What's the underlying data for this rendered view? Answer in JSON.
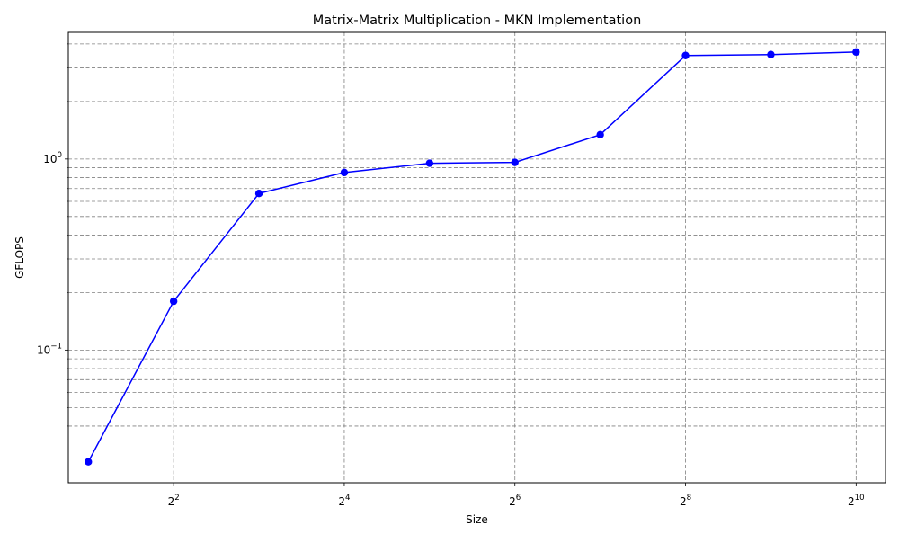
{
  "chart_data": {
    "type": "line",
    "title": "Matrix-Matrix Multiplication - MKN Implementation",
    "xlabel": "Size",
    "ylabel": "GFLOPS",
    "x_scale": "log2",
    "y_scale": "log10",
    "xlim": [
      1.7,
      1300
    ],
    "ylim": [
      0.0202,
      4.6
    ],
    "grid": true,
    "x_ticks": [
      {
        "base": "2",
        "exp": "2",
        "value": 4
      },
      {
        "base": "2",
        "exp": "4",
        "value": 16
      },
      {
        "base": "2",
        "exp": "6",
        "value": 64
      },
      {
        "base": "2",
        "exp": "8",
        "value": 256
      },
      {
        "base": "2",
        "exp": "10",
        "value": 1024
      }
    ],
    "y_major_ticks": [
      {
        "base": "10",
        "exp": "−1",
        "value": 0.1
      },
      {
        "base": "10",
        "exp": "0",
        "value": 1
      }
    ],
    "y_minor_ticks": [
      0.03,
      0.04,
      0.05,
      0.06,
      0.07,
      0.08,
      0.09,
      0.2,
      0.3,
      0.4,
      0.5,
      0.6,
      0.7,
      0.8,
      0.9,
      2,
      3,
      4
    ],
    "series": [
      {
        "name": "MKN",
        "color": "#0000ff",
        "x": [
          2,
          4,
          8,
          16,
          32,
          64,
          128,
          256,
          512,
          1024
        ],
        "y": [
          0.026,
          0.18,
          0.66,
          0.85,
          0.95,
          0.96,
          1.34,
          3.48,
          3.52,
          3.63
        ]
      }
    ]
  }
}
